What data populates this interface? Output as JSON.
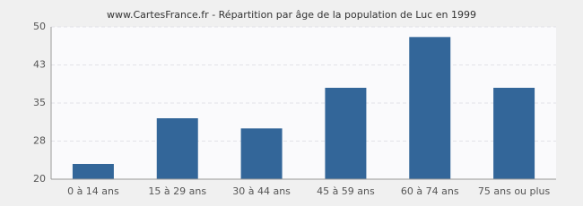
{
  "chart_data": {
    "type": "bar",
    "title": "www.CartesFrance.fr - Répartition par âge de la population de Luc en 1999",
    "categories": [
      "0 à 14 ans",
      "15 à 29 ans",
      "30 à 44 ans",
      "45 à 59 ans",
      "60 à 74 ans",
      "75 ans ou plus"
    ],
    "values": [
      23,
      32,
      30,
      38,
      48,
      38
    ],
    "color": "#336699",
    "ylim": [
      20,
      50
    ],
    "yticks": [
      20,
      {
        "value": 27.5,
        "label": "28"
      },
      35,
      {
        "value": 42.5,
        "label": "43"
      },
      50
    ],
    "grid": true
  }
}
